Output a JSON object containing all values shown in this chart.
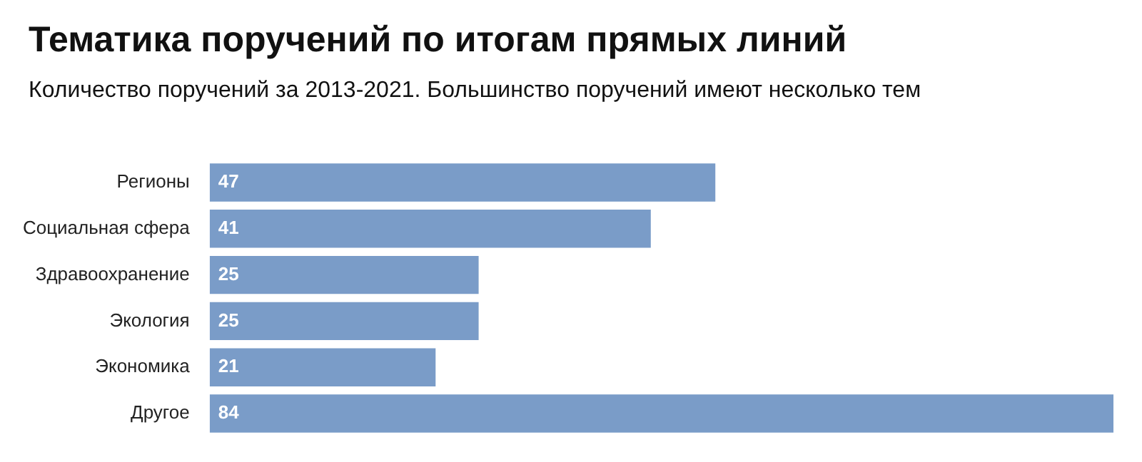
{
  "chart_data": {
    "type": "bar",
    "orientation": "horizontal",
    "title": "Тематика поручений по итогам прямых линий",
    "subtitle": "Количество поручений за 2013-2021. Большинство поручений имеют несколько тем",
    "categories": [
      "Регионы",
      "Социальная сфера",
      "Здравоохранение",
      "Экология",
      "Экономика",
      "Другое"
    ],
    "values": [
      47,
      41,
      25,
      25,
      21,
      84
    ],
    "color": "#7a9cc8",
    "data_labels": true
  }
}
